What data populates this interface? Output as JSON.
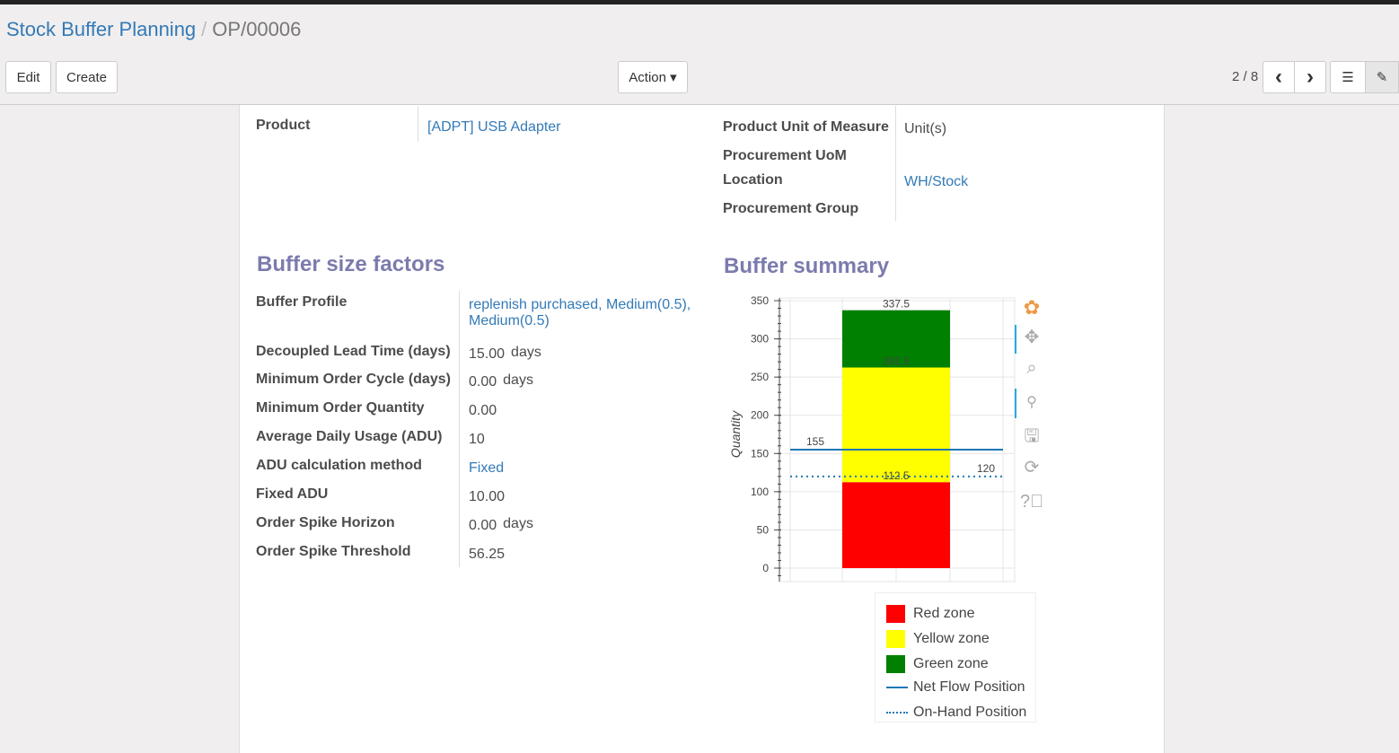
{
  "breadcrumb": {
    "parent": "Stock Buffer Planning",
    "separator": "/",
    "current": "OP/00006"
  },
  "toolbar": {
    "edit": "Edit",
    "create": "Create",
    "action": "Action ▾",
    "pager": "2 / 8",
    "prev": "‹",
    "next": "›"
  },
  "form": {
    "product_label": "Product",
    "product_value": "[ADPT] USB Adapter",
    "uom_label": "Product Unit of Measure",
    "uom_value": "Unit(s)",
    "proc_uom_label": "Procurement UoM",
    "location_label": "Location",
    "location_value": "WH/Stock",
    "proc_group_label": "Procurement Group"
  },
  "factors": {
    "title": "Buffer size factors",
    "rows": [
      {
        "label": "Buffer Profile",
        "value": "replenish purchased, Medium(0.5),",
        "value2": "Medium(0.5)",
        "link": true
      },
      {
        "label": "Decoupled Lead Time (days)",
        "value": "15.00",
        "unit": "days"
      },
      {
        "label": "Minimum Order Cycle (days)",
        "value": "0.00",
        "unit": "days"
      },
      {
        "label": "Minimum Order Quantity",
        "value": "0.00"
      },
      {
        "label": "Average Daily Usage (ADU)",
        "value": "10"
      },
      {
        "label": "ADU calculation method",
        "value": "Fixed",
        "link": true
      },
      {
        "label": "Fixed ADU",
        "value": "10.00"
      },
      {
        "label": "Order Spike Horizon",
        "value": "0.00",
        "unit": "days"
      },
      {
        "label": "Order Spike Threshold",
        "value": "56.25"
      }
    ]
  },
  "summary": {
    "title": "Buffer summary"
  },
  "chart_data": {
    "type": "bar",
    "ylabel": "Quantity",
    "ylim": [
      0,
      350
    ],
    "yticks": [
      0,
      50,
      100,
      150,
      200,
      250,
      300,
      350
    ],
    "grid": true,
    "series": [
      {
        "name": "Red zone",
        "from": 0,
        "to": 112.5,
        "color": "#ff0000"
      },
      {
        "name": "Yellow zone",
        "from": 112.5,
        "to": 262.5,
        "color": "#ffff00"
      },
      {
        "name": "Green zone",
        "from": 262.5,
        "to": 337.5,
        "color": "#008000"
      }
    ],
    "bar_labels": [
      "337.5",
      "262.5",
      "112.5"
    ],
    "lines": [
      {
        "name": "Net Flow Position",
        "value": 155,
        "label": "155",
        "style": "solid",
        "color": "#1f77b4"
      },
      {
        "name": "On-Hand Position",
        "value": 120,
        "label": "120",
        "style": "dotted",
        "color": "#1f77b4"
      }
    ],
    "legend": "bottom-right"
  }
}
